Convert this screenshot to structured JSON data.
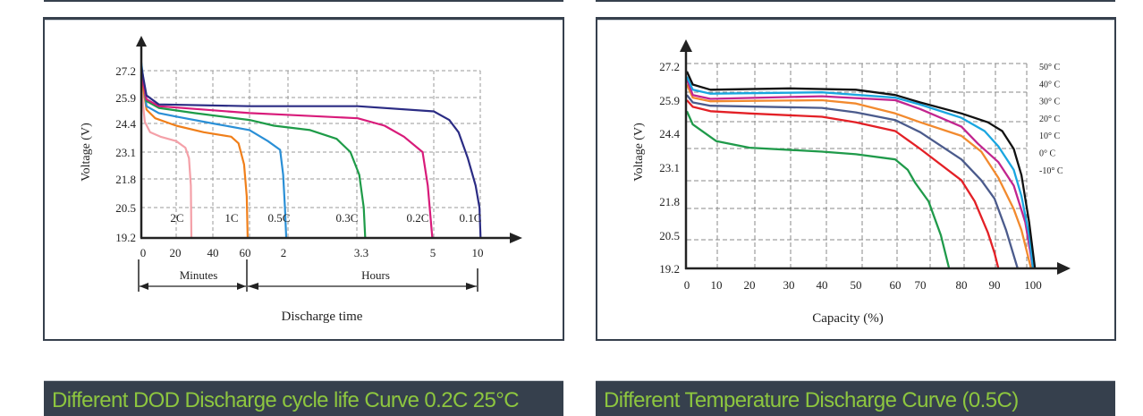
{
  "banners": {
    "left": "Different DOD Discharge cycle life Curve 0.2C 25°C",
    "right": "Different Temperature Discharge Curve (0.5C)"
  },
  "colors": {
    "banner_bg": "#36404d",
    "banner_text": "#8dc63f"
  },
  "chart_data": [
    {
      "type": "line",
      "ylabel": "Voltage (V)",
      "xlabel": "Discharge time",
      "x_segments": [
        {
          "label": "Minutes"
        },
        {
          "label": "Hours"
        }
      ],
      "y_ticks": [
        "19.2",
        "20.5",
        "21.8",
        "23.1",
        "24.4",
        "25.9",
        "27.2"
      ],
      "x_ticks": [
        {
          "label": "0",
          "minutes": 0
        },
        {
          "label": "20",
          "minutes": 20
        },
        {
          "label": "40",
          "minutes": 40
        },
        {
          "label": "60",
          "minutes": 60
        },
        {
          "label": "2",
          "minutes": 120
        },
        {
          "label": "3.3",
          "minutes": 198
        },
        {
          "label": "5",
          "minutes": 300
        },
        {
          "label": "10",
          "minutes": 600
        }
      ],
      "grid": true,
      "series": [
        {
          "name": "2C",
          "color": "#f4a0a8",
          "points": [
            [
              0,
              27.0
            ],
            [
              1,
              25.5
            ],
            [
              2,
              24.5
            ],
            [
              5,
              24.0
            ],
            [
              11,
              23.8
            ],
            [
              20,
              23.6
            ],
            [
              25,
              23.3
            ],
            [
              27,
              22.8
            ],
            [
              28,
              21.5
            ],
            [
              28.3,
              19.2
            ]
          ]
        },
        {
          "name": "1C",
          "color": "#f07f1a",
          "points": [
            [
              0,
              27.0
            ],
            [
              3,
              25.2
            ],
            [
              8,
              24.7
            ],
            [
              20,
              24.3
            ],
            [
              35,
              24.0
            ],
            [
              50,
              23.8
            ],
            [
              54,
              23.5
            ],
            [
              57,
              22.5
            ],
            [
              58.5,
              21.0
            ],
            [
              59,
              19.2
            ]
          ]
        },
        {
          "name": "0.5C",
          "color": "#2a8fd6",
          "points": [
            [
              0,
              27.6
            ],
            [
              3,
              25.4
            ],
            [
              10,
              25.0
            ],
            [
              20,
              24.8
            ],
            [
              40,
              24.4
            ],
            [
              60,
              24.1
            ],
            [
              90,
              23.6
            ],
            [
              110,
              23.2
            ],
            [
              115,
              22.0
            ],
            [
              118,
              20.5
            ],
            [
              120,
              19.2
            ]
          ]
        },
        {
          "name": "0.3C",
          "color": "#1e9b48",
          "points": [
            [
              0,
              27.3
            ],
            [
              3,
              25.7
            ],
            [
              10,
              25.3
            ],
            [
              30,
              25.0
            ],
            [
              60,
              24.6
            ],
            [
              100,
              24.3
            ],
            [
              146,
              24.1
            ],
            [
              175,
              23.7
            ],
            [
              190,
              23.1
            ],
            [
              200,
              22.0
            ],
            [
              206,
              20.5
            ],
            [
              208,
              19.2
            ]
          ]
        },
        {
          "name": "0.2C",
          "color": "#d81b7a",
          "points": [
            [
              0,
              27.0
            ],
            [
              3,
              25.8
            ],
            [
              10,
              25.4
            ],
            [
              60,
              25.0
            ],
            [
              120,
              24.9
            ],
            [
              198,
              24.7
            ],
            [
              234,
              24.3
            ],
            [
              260,
              23.8
            ],
            [
              285,
              23.1
            ],
            [
              292,
              21.5
            ],
            [
              298,
              19.2
            ]
          ]
        },
        {
          "name": "0.1C",
          "color": "#2b2c84",
          "points": [
            [
              0,
              27.4
            ],
            [
              3,
              26.0
            ],
            [
              10,
              25.5
            ],
            [
              60,
              25.4
            ],
            [
              198,
              25.4
            ],
            [
              300,
              25.1
            ],
            [
              400,
              24.6
            ],
            [
              460,
              24.0
            ],
            [
              520,
              22.8
            ],
            [
              570,
              21.5
            ],
            [
              595,
              20.5
            ],
            [
              602,
              19.2
            ]
          ]
        }
      ]
    },
    {
      "type": "line",
      "ylabel": "Voltage (V)",
      "xlabel": "Capacity (%)",
      "y_ticks": [
        "19.2",
        "20.5",
        "21.8",
        "23.1",
        "24.4",
        "25.9",
        "27.2"
      ],
      "x_ticks": [
        "0",
        "10",
        "20",
        "30",
        "40",
        "50",
        "60",
        "70",
        "80",
        "90",
        "100"
      ],
      "grid": true,
      "legend": "right",
      "series": [
        {
          "name": "50° C",
          "color": "#111111",
          "points": [
            [
              0,
              27.0
            ],
            [
              2,
              26.5
            ],
            [
              8,
              26.3
            ],
            [
              30,
              26.35
            ],
            [
              50,
              26.3
            ],
            [
              60,
              26.1
            ],
            [
              70,
              25.8
            ],
            [
              80,
              25.3
            ],
            [
              88,
              24.9
            ],
            [
              92,
              24.5
            ],
            [
              95,
              23.8
            ],
            [
              97,
              22.8
            ],
            [
              99,
              21.0
            ],
            [
              100.5,
              19.2
            ]
          ]
        },
        {
          "name": "40° C",
          "color": "#1aa6e0",
          "points": [
            [
              0,
              26.8
            ],
            [
              2,
              26.3
            ],
            [
              8,
              26.15
            ],
            [
              40,
              26.2
            ],
            [
              60,
              26.0
            ],
            [
              70,
              25.7
            ],
            [
              80,
              25.1
            ],
            [
              87,
              24.5
            ],
            [
              91,
              23.9
            ],
            [
              95,
              23.0
            ],
            [
              97,
              22.0
            ],
            [
              99,
              20.5
            ],
            [
              100,
              19.2
            ]
          ]
        },
        {
          "name": "30° C",
          "color": "#c2258f",
          "points": [
            [
              0,
              26.7
            ],
            [
              2,
              26.1
            ],
            [
              8,
              25.95
            ],
            [
              40,
              26.05
            ],
            [
              60,
              25.9
            ],
            [
              70,
              25.5
            ],
            [
              80,
              24.7
            ],
            [
              85,
              24.0
            ],
            [
              91,
              23.3
            ],
            [
              95,
              22.4
            ],
            [
              98,
              21.0
            ],
            [
              100,
              19.2
            ]
          ]
        },
        {
          "name": "20° C",
          "color": "#f28a2e",
          "points": [
            [
              0,
              26.5
            ],
            [
              2,
              26.0
            ],
            [
              8,
              25.85
            ],
            [
              40,
              25.9
            ],
            [
              50,
              25.75
            ],
            [
              60,
              25.3
            ],
            [
              70,
              24.9
            ],
            [
              80,
              24.3
            ],
            [
              86,
              23.7
            ],
            [
              91,
              22.7
            ],
            [
              95,
              21.5
            ],
            [
              97,
              20.7
            ],
            [
              99.5,
              19.2
            ]
          ]
        },
        {
          "name": "10° C",
          "color": "#4b5b8c",
          "points": [
            [
              0,
              26.1
            ],
            [
              2,
              25.8
            ],
            [
              8,
              25.65
            ],
            [
              40,
              25.55
            ],
            [
              50,
              25.35
            ],
            [
              60,
              25.0
            ],
            [
              70,
              24.45
            ],
            [
              80,
              23.4
            ],
            [
              86,
              22.6
            ],
            [
              90,
              21.9
            ],
            [
              93,
              20.7
            ],
            [
              96,
              19.2
            ]
          ]
        },
        {
          "name": "0° C",
          "color": "#e32026",
          "points": [
            [
              0,
              25.9
            ],
            [
              2,
              25.6
            ],
            [
              8,
              25.4
            ],
            [
              20,
              25.3
            ],
            [
              40,
              25.15
            ],
            [
              50,
              24.9
            ],
            [
              60,
              24.5
            ],
            [
              70,
              23.8
            ],
            [
              80,
              22.6
            ],
            [
              84,
              21.8
            ],
            [
              88,
              20.6
            ],
            [
              90,
              19.8
            ],
            [
              91,
              19.2
            ]
          ]
        },
        {
          "name": "-10° C",
          "color": "#1f9a4a",
          "points": [
            [
              0,
              25.4
            ],
            [
              2,
              24.8
            ],
            [
              10,
              24.1
            ],
            [
              20,
              23.85
            ],
            [
              40,
              23.7
            ],
            [
              50,
              23.6
            ],
            [
              60,
              23.4
            ],
            [
              65,
              23.0
            ],
            [
              68,
              22.5
            ],
            [
              72,
              21.8
            ],
            [
              75,
              20.5
            ],
            [
              77,
              19.2
            ]
          ]
        }
      ]
    }
  ]
}
